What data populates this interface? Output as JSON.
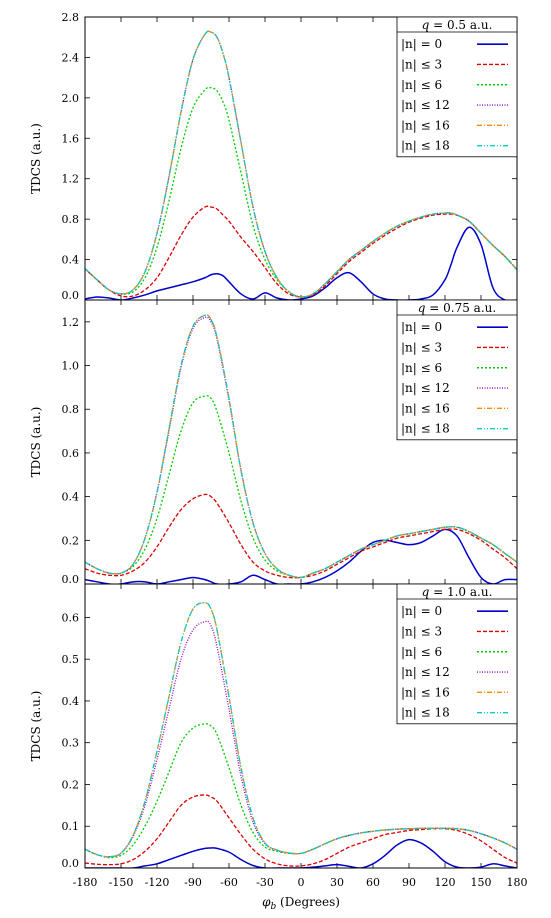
{
  "chart_data": [
    {
      "type": "line",
      "ylabel": "TDCS (a.u.)",
      "xlabel": "",
      "ylim": [
        0,
        2.8
      ],
      "yticks": [
        "0.0",
        "0.4",
        "0.8",
        "1.2",
        "1.6",
        "2.0",
        "2.4",
        "2.8"
      ],
      "legend_title": "q = 0.5 a.u.",
      "legend_position": "top-right",
      "x": [
        -180,
        -170,
        -160,
        -150,
        -140,
        -130,
        -120,
        -110,
        -100,
        -90,
        -80,
        -75,
        -70,
        -65,
        -60,
        -50,
        -40,
        -30,
        -20,
        -10,
        0,
        10,
        20,
        30,
        40,
        50,
        60,
        70,
        80,
        90,
        100,
        110,
        120,
        125,
        130,
        140,
        150,
        160,
        170,
        180
      ],
      "series": [
        {
          "name": "|n| = 0",
          "color": "#0000cc",
          "dash": "",
          "values": [
            0.01,
            0.03,
            0.02,
            0.0,
            0.02,
            0.05,
            0.09,
            0.12,
            0.15,
            0.18,
            0.22,
            0.25,
            0.26,
            0.24,
            0.18,
            0.06,
            0.01,
            0.07,
            0.02,
            0.0,
            0.01,
            0.04,
            0.12,
            0.22,
            0.27,
            0.18,
            0.06,
            0.01,
            0.0,
            0.0,
            0.01,
            0.05,
            0.2,
            0.35,
            0.52,
            0.72,
            0.55,
            0.12,
            0.0,
            0.0
          ]
        },
        {
          "name": "|n| ≤ 3",
          "color": "#dd0000",
          "dash": "4,2",
          "values": [
            0.31,
            0.2,
            0.1,
            0.04,
            0.04,
            0.1,
            0.22,
            0.42,
            0.64,
            0.82,
            0.92,
            0.92,
            0.9,
            0.84,
            0.78,
            0.62,
            0.48,
            0.32,
            0.16,
            0.06,
            0.03,
            0.05,
            0.14,
            0.26,
            0.38,
            0.47,
            0.56,
            0.64,
            0.71,
            0.77,
            0.81,
            0.84,
            0.85,
            0.85,
            0.84,
            0.78,
            0.66,
            0.54,
            0.43,
            0.3
          ]
        },
        {
          "name": "|n| ≤ 6",
          "color": "#00cc00",
          "dash": "2,2",
          "values": [
            0.31,
            0.2,
            0.1,
            0.06,
            0.08,
            0.22,
            0.52,
            0.98,
            1.5,
            1.9,
            2.08,
            2.1,
            2.07,
            1.96,
            1.78,
            1.26,
            0.74,
            0.4,
            0.2,
            0.08,
            0.03,
            0.06,
            0.16,
            0.28,
            0.4,
            0.49,
            0.58,
            0.66,
            0.73,
            0.78,
            0.82,
            0.85,
            0.86,
            0.86,
            0.84,
            0.78,
            0.66,
            0.54,
            0.43,
            0.3
          ]
        },
        {
          "name": "|n| ≤ 12",
          "color": "#9900cc",
          "dash": "1,1.5",
          "values": [
            0.31,
            0.2,
            0.1,
            0.06,
            0.1,
            0.28,
            0.66,
            1.22,
            1.86,
            2.38,
            2.63,
            2.65,
            2.6,
            2.44,
            2.2,
            1.56,
            0.92,
            0.48,
            0.22,
            0.08,
            0.03,
            0.06,
            0.16,
            0.28,
            0.4,
            0.49,
            0.58,
            0.66,
            0.73,
            0.78,
            0.82,
            0.85,
            0.86,
            0.86,
            0.84,
            0.78,
            0.66,
            0.54,
            0.43,
            0.3
          ]
        },
        {
          "name": "|n| ≤ 16",
          "color": "#ff8800",
          "dash": "5,2,1,2",
          "values": [
            0.31,
            0.2,
            0.1,
            0.06,
            0.1,
            0.28,
            0.66,
            1.22,
            1.86,
            2.38,
            2.63,
            2.65,
            2.6,
            2.44,
            2.2,
            1.56,
            0.92,
            0.48,
            0.22,
            0.08,
            0.03,
            0.06,
            0.16,
            0.28,
            0.4,
            0.49,
            0.58,
            0.66,
            0.73,
            0.78,
            0.82,
            0.85,
            0.86,
            0.86,
            0.84,
            0.78,
            0.66,
            0.54,
            0.43,
            0.3
          ]
        },
        {
          "name": "|n| ≤ 18",
          "color": "#00cccc",
          "dash": "5,2,1,2,1,2",
          "values": [
            0.31,
            0.2,
            0.1,
            0.06,
            0.1,
            0.28,
            0.66,
            1.22,
            1.86,
            2.38,
            2.63,
            2.65,
            2.6,
            2.44,
            2.2,
            1.56,
            0.92,
            0.48,
            0.22,
            0.08,
            0.03,
            0.06,
            0.16,
            0.28,
            0.4,
            0.49,
            0.58,
            0.66,
            0.73,
            0.78,
            0.82,
            0.85,
            0.86,
            0.86,
            0.84,
            0.78,
            0.66,
            0.54,
            0.43,
            0.3
          ]
        }
      ]
    },
    {
      "type": "line",
      "ylabel": "TDCS (a.u.)",
      "xlabel": "",
      "ylim": [
        0,
        1.3
      ],
      "yticks": [
        "0.0",
        "0.2",
        "0.4",
        "0.6",
        "0.8",
        "1.0",
        "1.2"
      ],
      "legend_title": "q = 0.75 a.u.",
      "legend_position": "top-right",
      "x": [
        -180,
        -170,
        -160,
        -150,
        -140,
        -130,
        -120,
        -110,
        -100,
        -90,
        -80,
        -75,
        -70,
        -60,
        -50,
        -40,
        -30,
        -20,
        -10,
        0,
        10,
        20,
        30,
        40,
        50,
        60,
        70,
        80,
        90,
        100,
        110,
        120,
        130,
        140,
        150,
        160,
        170,
        180
      ],
      "series": [
        {
          "name": "|n| = 0",
          "color": "#0000cc",
          "dash": "",
          "values": [
            0.02,
            0.01,
            0.0,
            0.0,
            0.01,
            0.01,
            0.0,
            0.01,
            0.02,
            0.03,
            0.02,
            0.01,
            0.0,
            0.0,
            0.01,
            0.04,
            0.02,
            0.0,
            0.0,
            0.0,
            0.01,
            0.03,
            0.06,
            0.1,
            0.15,
            0.19,
            0.2,
            0.19,
            0.18,
            0.19,
            0.22,
            0.25,
            0.22,
            0.12,
            0.03,
            0.0,
            0.02,
            0.02
          ]
        },
        {
          "name": "|n| ≤ 3",
          "color": "#dd0000",
          "dash": "4,2",
          "values": [
            0.07,
            0.05,
            0.04,
            0.04,
            0.06,
            0.1,
            0.17,
            0.26,
            0.34,
            0.39,
            0.41,
            0.4,
            0.37,
            0.28,
            0.18,
            0.1,
            0.06,
            0.04,
            0.03,
            0.03,
            0.04,
            0.06,
            0.09,
            0.12,
            0.15,
            0.17,
            0.19,
            0.21,
            0.22,
            0.23,
            0.24,
            0.25,
            0.25,
            0.23,
            0.2,
            0.16,
            0.12,
            0.07
          ]
        },
        {
          "name": "|n| ≤ 6",
          "color": "#00cc00",
          "dash": "2,2",
          "values": [
            0.1,
            0.07,
            0.05,
            0.05,
            0.08,
            0.16,
            0.3,
            0.5,
            0.7,
            0.83,
            0.86,
            0.85,
            0.79,
            0.6,
            0.38,
            0.21,
            0.11,
            0.06,
            0.04,
            0.03,
            0.05,
            0.07,
            0.1,
            0.13,
            0.16,
            0.18,
            0.2,
            0.22,
            0.23,
            0.24,
            0.25,
            0.26,
            0.26,
            0.24,
            0.21,
            0.18,
            0.14,
            0.1
          ]
        },
        {
          "name": "|n| ≤ 12",
          "color": "#9900cc",
          "dash": "1,1.5",
          "values": [
            0.1,
            0.07,
            0.05,
            0.05,
            0.09,
            0.21,
            0.42,
            0.7,
            0.99,
            1.17,
            1.22,
            1.2,
            1.12,
            0.84,
            0.52,
            0.28,
            0.14,
            0.07,
            0.04,
            0.03,
            0.05,
            0.07,
            0.1,
            0.13,
            0.16,
            0.18,
            0.2,
            0.22,
            0.23,
            0.24,
            0.25,
            0.26,
            0.26,
            0.24,
            0.21,
            0.18,
            0.14,
            0.1
          ]
        },
        {
          "name": "|n| ≤ 16",
          "color": "#ff8800",
          "dash": "5,2,1,2",
          "values": [
            0.1,
            0.07,
            0.05,
            0.05,
            0.09,
            0.21,
            0.42,
            0.71,
            1.0,
            1.18,
            1.23,
            1.21,
            1.13,
            0.85,
            0.52,
            0.28,
            0.14,
            0.07,
            0.04,
            0.03,
            0.05,
            0.07,
            0.1,
            0.13,
            0.16,
            0.18,
            0.2,
            0.22,
            0.23,
            0.24,
            0.25,
            0.26,
            0.26,
            0.24,
            0.21,
            0.18,
            0.14,
            0.1
          ]
        },
        {
          "name": "|n| ≤ 18",
          "color": "#00cccc",
          "dash": "5,2,1,2,1,2",
          "values": [
            0.1,
            0.07,
            0.05,
            0.05,
            0.09,
            0.21,
            0.42,
            0.71,
            1.0,
            1.18,
            1.23,
            1.21,
            1.13,
            0.85,
            0.52,
            0.28,
            0.14,
            0.07,
            0.04,
            0.03,
            0.05,
            0.07,
            0.1,
            0.13,
            0.16,
            0.18,
            0.2,
            0.22,
            0.23,
            0.24,
            0.25,
            0.26,
            0.26,
            0.24,
            0.21,
            0.18,
            0.14,
            0.1
          ]
        }
      ]
    },
    {
      "type": "line",
      "ylabel": "TDCS (a.u.)",
      "xlabel": "φb (Degrees)",
      "ylim": [
        0,
        0.68
      ],
      "yticks": [
        "0.0",
        "0.1",
        "0.2",
        "0.3",
        "0.4",
        "0.5",
        "0.6"
      ],
      "xticks": [
        "-180",
        "-150",
        "-120",
        "-90",
        "-60",
        "-30",
        "0",
        "30",
        "60",
        "90",
        "120",
        "150",
        "180"
      ],
      "legend_title": "q = 1.0 a.u.",
      "legend_position": "top-right",
      "x": [
        -180,
        -170,
        -160,
        -150,
        -140,
        -130,
        -120,
        -110,
        -100,
        -90,
        -80,
        -75,
        -70,
        -60,
        -50,
        -40,
        -30,
        -20,
        -10,
        0,
        10,
        20,
        30,
        40,
        50,
        60,
        70,
        80,
        90,
        100,
        110,
        120,
        130,
        140,
        150,
        160,
        170,
        180
      ],
      "series": [
        {
          "name": "|n| = 0",
          "color": "#0000cc",
          "dash": "",
          "values": [
            0.0,
            0.0,
            0.0,
            0.0,
            0.0,
            0.005,
            0.01,
            0.02,
            0.03,
            0.04,
            0.047,
            0.048,
            0.047,
            0.038,
            0.02,
            0.006,
            0.0,
            0.0,
            0.0,
            0.0,
            0.002,
            0.005,
            0.008,
            0.004,
            0.0,
            0.01,
            0.03,
            0.055,
            0.068,
            0.06,
            0.04,
            0.015,
            0.002,
            0.0,
            0.002,
            0.01,
            0.005,
            0.0
          ]
        },
        {
          "name": "|n| ≤ 3",
          "color": "#dd0000",
          "dash": "4,2",
          "values": [
            0.012,
            0.009,
            0.008,
            0.01,
            0.02,
            0.04,
            0.07,
            0.11,
            0.15,
            0.17,
            0.175,
            0.17,
            0.16,
            0.12,
            0.08,
            0.045,
            0.022,
            0.01,
            0.005,
            0.005,
            0.01,
            0.02,
            0.035,
            0.05,
            0.06,
            0.07,
            0.08,
            0.085,
            0.09,
            0.092,
            0.094,
            0.094,
            0.09,
            0.08,
            0.065,
            0.045,
            0.025,
            0.012
          ]
        },
        {
          "name": "|n| ≤ 6",
          "color": "#00cc00",
          "dash": "2,2",
          "values": [
            0.045,
            0.032,
            0.025,
            0.03,
            0.055,
            0.1,
            0.16,
            0.23,
            0.3,
            0.335,
            0.345,
            0.34,
            0.32,
            0.24,
            0.15,
            0.085,
            0.05,
            0.04,
            0.035,
            0.035,
            0.045,
            0.058,
            0.07,
            0.078,
            0.084,
            0.088,
            0.091,
            0.093,
            0.094,
            0.095,
            0.095,
            0.095,
            0.094,
            0.09,
            0.082,
            0.072,
            0.06,
            0.045
          ]
        },
        {
          "name": "|n| ≤ 12",
          "color": "#9900cc",
          "dash": "1,1.5",
          "values": [
            0.045,
            0.032,
            0.027,
            0.035,
            0.075,
            0.15,
            0.26,
            0.38,
            0.5,
            0.57,
            0.59,
            0.58,
            0.53,
            0.38,
            0.22,
            0.11,
            0.058,
            0.042,
            0.036,
            0.035,
            0.045,
            0.058,
            0.07,
            0.078,
            0.084,
            0.088,
            0.091,
            0.093,
            0.094,
            0.095,
            0.095,
            0.095,
            0.094,
            0.09,
            0.082,
            0.072,
            0.06,
            0.045
          ]
        },
        {
          "name": "|n| ≤ 16",
          "color": "#ff8800",
          "dash": "5,2,1,2",
          "values": [
            0.045,
            0.032,
            0.027,
            0.036,
            0.078,
            0.16,
            0.28,
            0.41,
            0.54,
            0.62,
            0.635,
            0.62,
            0.57,
            0.41,
            0.24,
            0.12,
            0.06,
            0.043,
            0.036,
            0.035,
            0.045,
            0.058,
            0.07,
            0.078,
            0.084,
            0.088,
            0.091,
            0.093,
            0.094,
            0.095,
            0.095,
            0.095,
            0.094,
            0.09,
            0.082,
            0.072,
            0.06,
            0.045
          ]
        },
        {
          "name": "|n| ≤ 18",
          "color": "#00cccc",
          "dash": "5,2,1,2,1,2",
          "values": [
            0.045,
            0.032,
            0.027,
            0.036,
            0.078,
            0.16,
            0.28,
            0.41,
            0.54,
            0.62,
            0.635,
            0.62,
            0.57,
            0.41,
            0.24,
            0.12,
            0.06,
            0.043,
            0.036,
            0.035,
            0.045,
            0.058,
            0.07,
            0.078,
            0.084,
            0.088,
            0.091,
            0.093,
            0.094,
            0.095,
            0.095,
            0.095,
            0.094,
            0.09,
            0.082,
            0.072,
            0.06,
            0.045
          ]
        }
      ]
    }
  ]
}
